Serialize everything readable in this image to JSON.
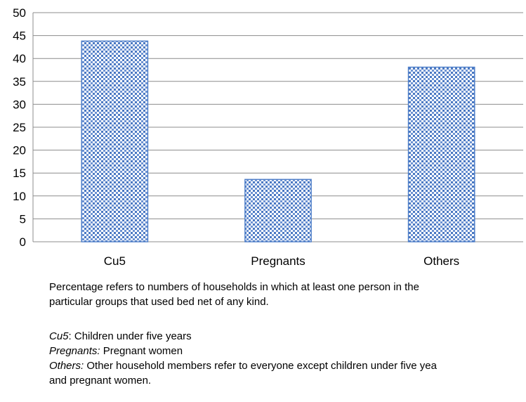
{
  "chart_data": {
    "type": "bar",
    "categories": [
      "Cu5",
      "Pregnants",
      "Others"
    ],
    "values": [
      43.8,
      13.6,
      38.1
    ],
    "ylim": [
      0,
      50
    ],
    "yticks": [
      0,
      5,
      10,
      15,
      20,
      25,
      30,
      35,
      40,
      45,
      50
    ],
    "grid": true,
    "legend": "none",
    "bar_fill": "#4a78c2",
    "bar_border": "#4f7fc9",
    "grid_color": "#8c8c8c"
  },
  "notes": {
    "line1": "Percentage refers to numbers of households in which at least one person in the",
    "line2": "particular groups  that used bed net of any kind.",
    "defs": [
      {
        "term": "Cu5",
        "sep": ":",
        "text": " Children  under five years"
      },
      {
        "term": "Pregnants:",
        "sep": "",
        "text": " Pregnant women"
      },
      {
        "term": "Others:",
        "sep": "",
        "text": " Other household members refer to everyone except children under five yea"
      }
    ],
    "line_last": "and pregnant women."
  }
}
